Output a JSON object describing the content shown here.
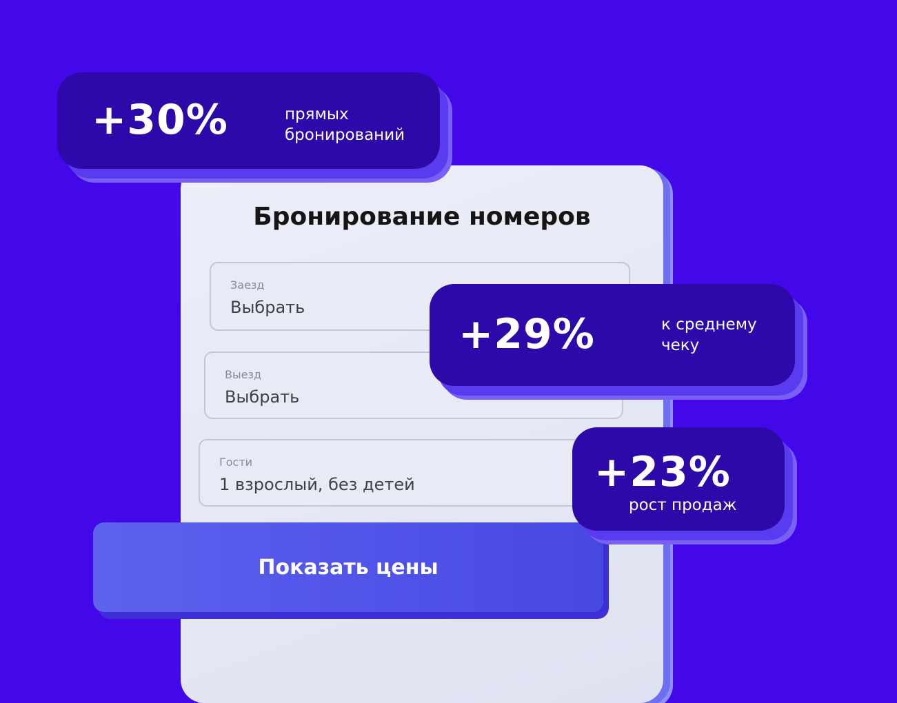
{
  "colors": {
    "background": "#4208e9",
    "badge": "#2d09a9",
    "button": "#5157ea",
    "card": "#e3e6f3"
  },
  "form": {
    "title": "Бронирование номеров",
    "fields": [
      {
        "label": "Заезд",
        "value": "Выбрать"
      },
      {
        "label": "Выезд",
        "value": "Выбрать"
      },
      {
        "label": "Гости",
        "value": "1 взрослый, без детей"
      }
    ],
    "submit_label": "Показать цены"
  },
  "badges": [
    {
      "value": "+30%",
      "caption_line1": "прямых",
      "caption_line2": "бронирований"
    },
    {
      "value": "+29%",
      "caption_line1": "к среднему",
      "caption_line2": "чеку"
    },
    {
      "value": "+23%",
      "caption": "рост продаж"
    }
  ]
}
